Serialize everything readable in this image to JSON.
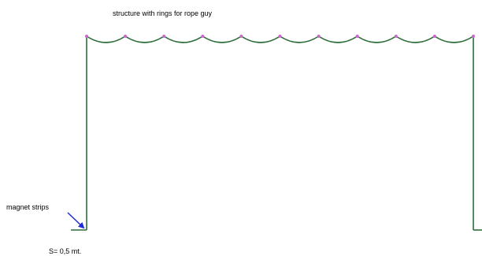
{
  "labels": {
    "title": "structure with rings for rope guy",
    "magnet": "magnet strips",
    "spacing": "S= 0,5 mt."
  },
  "rings": {
    "count": 11,
    "color": "#cc66cc"
  },
  "colors": {
    "structure": "#2f6e3a",
    "arrow": "#1f2bd6",
    "text": "#000000"
  }
}
